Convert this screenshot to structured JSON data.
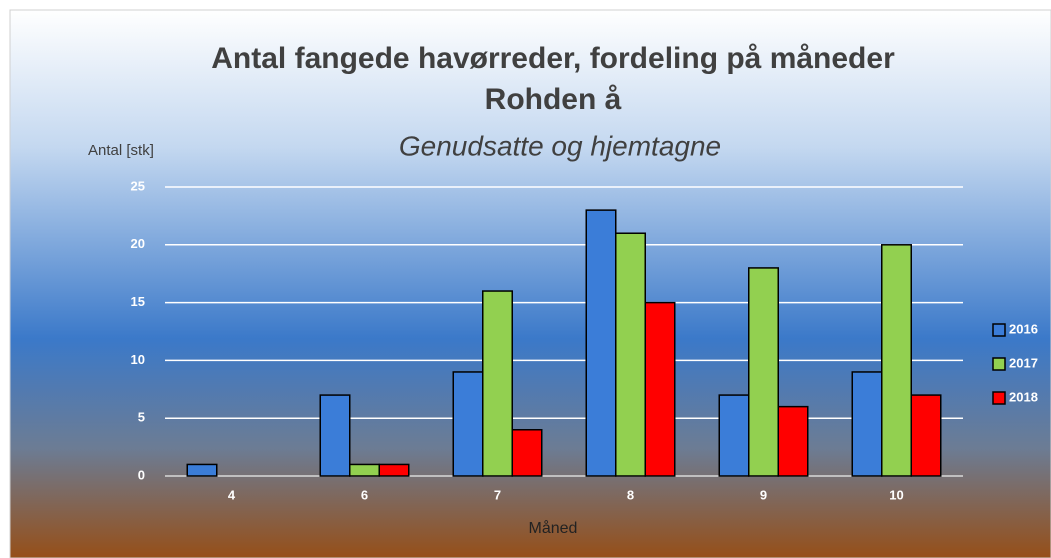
{
  "chart_data": {
    "type": "bar",
    "title": [
      "Antal fangede havørreder, fordeling på måneder",
      "Rohden å"
    ],
    "subtitle": "Genudsatte og hjemtagne",
    "y_label": "Antal [stk]",
    "x_label": "Måned",
    "categories": [
      "4",
      "6",
      "7",
      "8",
      "9",
      "10"
    ],
    "series": [
      {
        "name": "2016",
        "color": "#3b7dd8",
        "values": [
          1,
          7,
          9,
          23,
          7,
          9
        ]
      },
      {
        "name": "2017",
        "color": "#92d050",
        "values": [
          0,
          1,
          16,
          21,
          18,
          20
        ]
      },
      {
        "name": "2018",
        "color": "#ff0000",
        "values": [
          0,
          1,
          4,
          15,
          6,
          7
        ]
      }
    ],
    "ylim": [
      0,
      25
    ],
    "yticks": [
      0,
      5,
      10,
      15,
      20,
      25
    ],
    "grid": true,
    "legend": "right"
  }
}
